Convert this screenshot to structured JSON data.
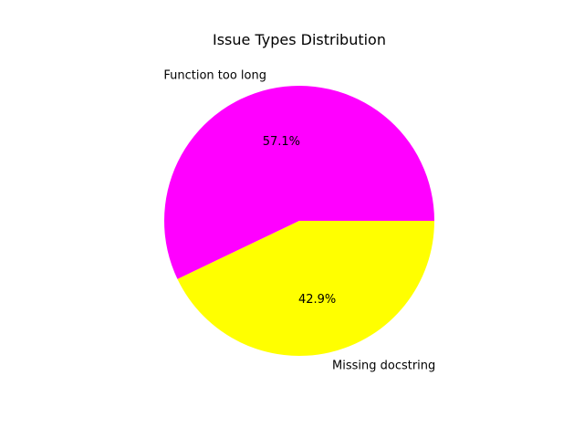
{
  "chart_data": {
    "type": "pie",
    "title": "Issue Types Distribution",
    "labels": [
      "Function too long",
      "Missing docstring"
    ],
    "values": [
      57.1,
      42.9
    ],
    "percent_labels": [
      "57.1%",
      "42.9%"
    ],
    "colors": [
      "#ff00ff",
      "#ffff00"
    ],
    "start_angle_deg": 0,
    "direction": "counterclockwise",
    "legend": "none"
  }
}
